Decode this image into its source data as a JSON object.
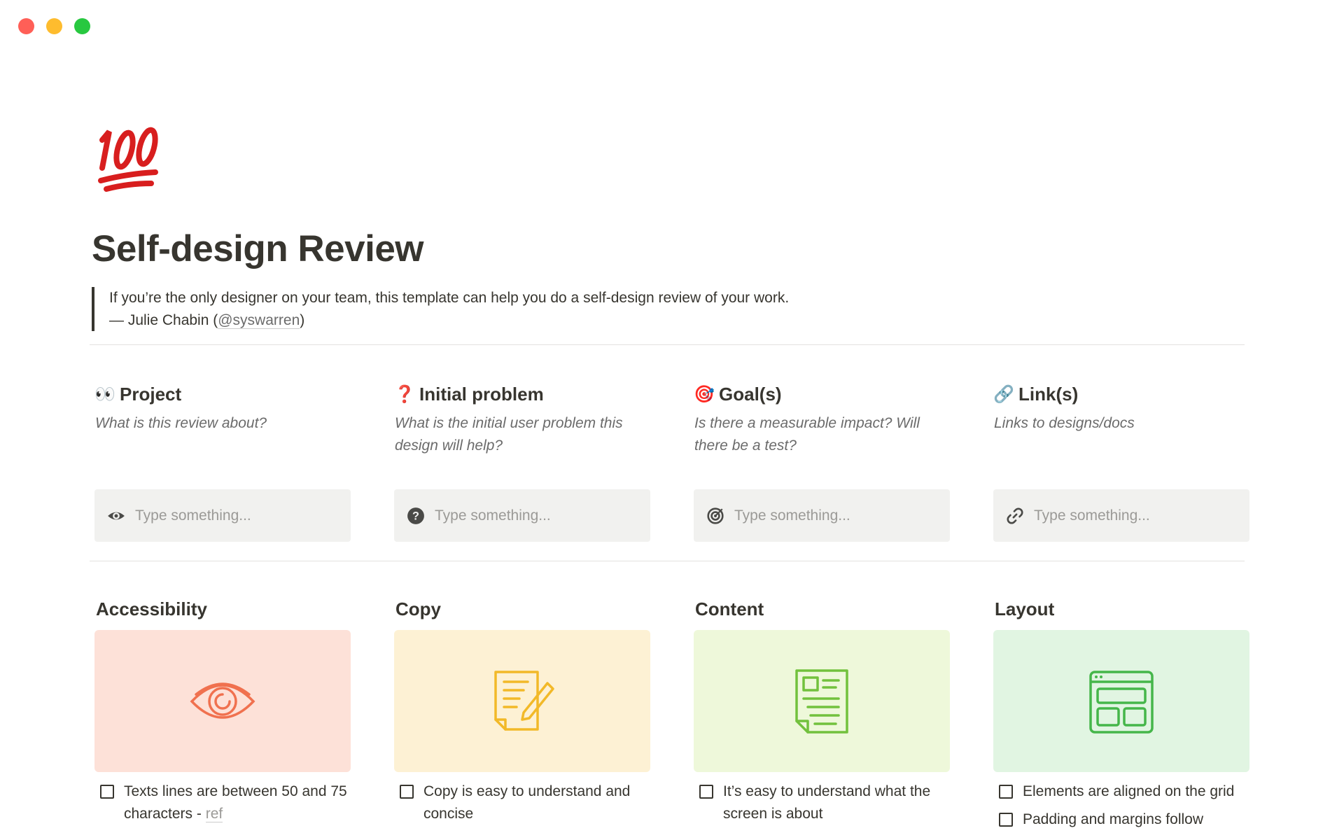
{
  "window": {
    "controls": [
      {
        "name": "close",
        "color": "#ff5f57"
      },
      {
        "name": "minimize",
        "color": "#febc2e"
      },
      {
        "name": "zoom",
        "color": "#28c840"
      }
    ]
  },
  "page": {
    "icon": "hundred-points-emoji",
    "title": "Self-design Review",
    "quote": {
      "text": "If you’re the only designer on your team, this template can help you do a self-design review of your work.",
      "attribution_prefix": "— Julie Chabin (",
      "handle": "@syswarren",
      "attribution_suffix": ")"
    }
  },
  "questions": [
    {
      "emoji": "👀",
      "title": "Project",
      "description": "What is this review about?",
      "icon": "eye-icon",
      "placeholder": "Type something..."
    },
    {
      "emoji": "❓",
      "title": "Initial problem",
      "description": "What is the initial user problem this design will help?",
      "icon": "question-circle-icon",
      "placeholder": "Type something..."
    },
    {
      "emoji": "🎯",
      "title": "Goal(s)",
      "description": "Is there a measurable impact? Will there be a test?",
      "icon": "target-icon",
      "placeholder": "Type something..."
    },
    {
      "emoji": "🔗",
      "title": "Link(s)",
      "description": "Links to designs/docs",
      "icon": "link-icon",
      "placeholder": "Type something..."
    }
  ],
  "sections": [
    {
      "title": "Accessibility",
      "bg": "#fde1d8",
      "accent": "#f0714f",
      "icon": "eye-illustration",
      "tasks": [
        {
          "text": "Texts lines are between 50 and 75 characters - ",
          "link": "ref"
        }
      ]
    },
    {
      "title": "Copy",
      "bg": "#fdf1d4",
      "accent": "#f2b928",
      "icon": "document-pencil-illustration",
      "tasks": [
        {
          "text": "Copy is easy to understand and concise"
        }
      ]
    },
    {
      "title": "Content",
      "bg": "#eef8da",
      "accent": "#72c13d",
      "icon": "document-content-illustration",
      "tasks": [
        {
          "text": "It’s easy to understand what the screen is about"
        }
      ]
    },
    {
      "title": "Layout",
      "bg": "#e1f5e2",
      "accent": "#45b64a",
      "icon": "layout-window-illustration",
      "tasks": [
        {
          "text": "Elements are aligned on the grid"
        },
        {
          "text": "Padding and margins follow"
        }
      ]
    }
  ]
}
